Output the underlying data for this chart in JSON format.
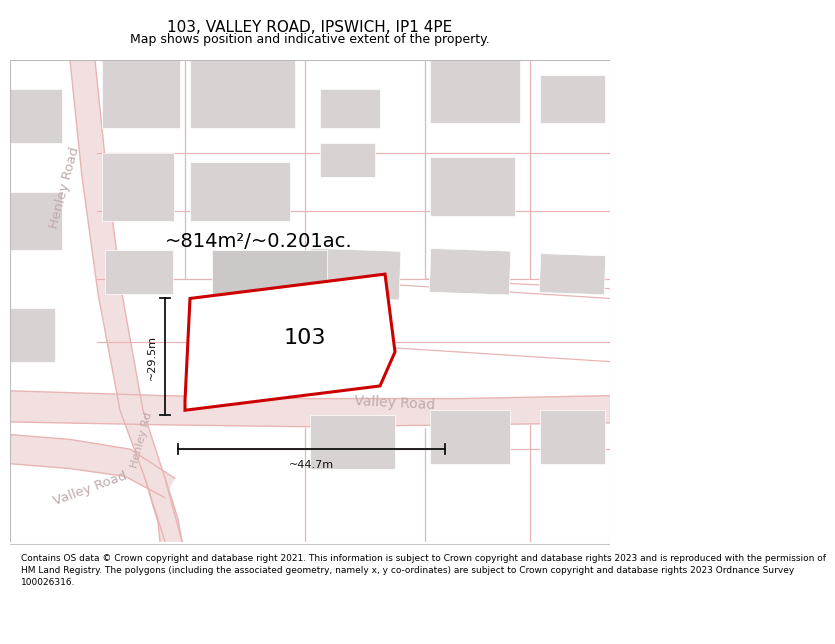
{
  "title": "103, VALLEY ROAD, IPSWICH, IP1 4PE",
  "subtitle": "Map shows position and indicative extent of the property.",
  "area_label": "~814m²/~0.201ac.",
  "property_number": "103",
  "width_label": "~44.7m",
  "height_label": "~29.5m",
  "footer_lines": [
    "Contains OS data © Crown copyright and database right 2021. This information is subject to Crown copyright and database rights 2023 and is reproduced with the permission of",
    "HM Land Registry. The polygons (including the associated geometry, namely x, y co-ordinates) are subject to Crown copyright and database rights 2023 Ordnance Survey",
    "100026316."
  ],
  "map_bg": "#f7f2f2",
  "road_line_color": "#e8b4b4",
  "road_fill_color": "#f2e0e0",
  "building_color": "#d8d2d2",
  "building_edge": "#ffffff",
  "property_outline_color": "#cc0000",
  "property_fill": "#ffffff",
  "road_label_color": "#c0aaaa",
  "dim_line_color": "#111111",
  "title_fontsize": 11,
  "subtitle_fontsize": 9,
  "area_fontsize": 14,
  "number_fontsize": 16,
  "dim_fontsize": 8,
  "footer_fontsize": 6.5,
  "road_label_fontsize": 9.5
}
